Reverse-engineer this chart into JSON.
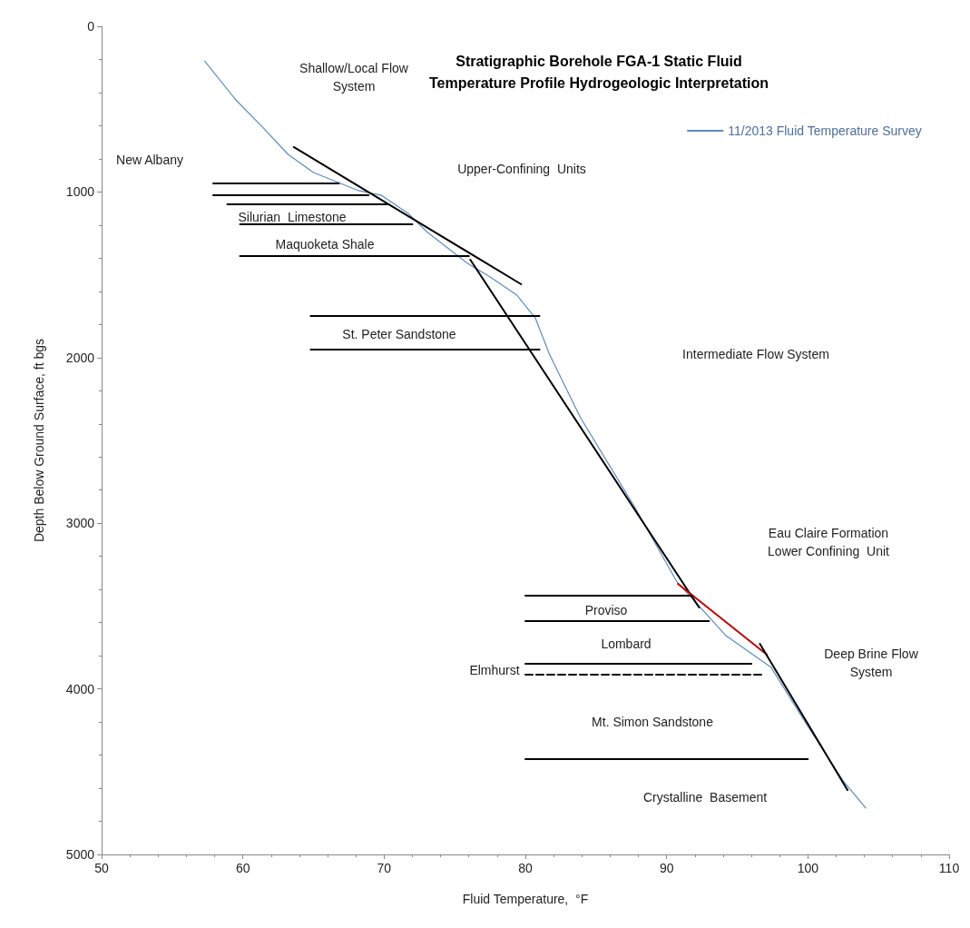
{
  "chart_data": {
    "type": "line",
    "title": "Stratigraphic Borehole FGA-1 Static Fluid\nTemperature Profile Hydrogeologic Interpretation",
    "xlabel": "Fluid Temperature,  °F",
    "ylabel": "Depth Below Ground Surface, ft bgs",
    "xlim": [
      50,
      110
    ],
    "xticks": [
      50,
      60,
      70,
      80,
      90,
      100,
      110
    ],
    "ylim": [
      5000,
      0
    ],
    "yticks": [
      0,
      1000,
      2000,
      3000,
      4000,
      5000
    ],
    "grid": false,
    "legend": "top right",
    "marker": "none",
    "line_style": "solid",
    "series": [
      {
        "name": "11/2013 Fluid Temperature Survey",
        "color": "#5b8bc0",
        "x": [
          57.3,
          59.5,
          61.4,
          63.2,
          65.0,
          68.2,
          69.8,
          71.7,
          73.0,
          75.9,
          77.5,
          79.4,
          80.7,
          81.7,
          83.9,
          87.8,
          90.7,
          94.2,
          97.4,
          100.0,
          102.5,
          104.1
        ],
        "values": [
          210,
          444,
          609,
          773,
          883,
          992,
          1020,
          1129,
          1239,
          1431,
          1513,
          1623,
          1760,
          1979,
          2363,
          2911,
          3350,
          3679,
          3871,
          4227,
          4556,
          4720
        ]
      },
      {
        "color": "#000000",
        "x": [
          63.6,
          79.7
        ],
        "values": [
          729,
          1557
        ]
      },
      {
        "color": "#000000",
        "x": [
          76.1,
          92.3
        ],
        "values": [
          1409,
          3509
        ]
      },
      {
        "color": "#c00000",
        "x": [
          90.8,
          97.1
        ],
        "values": [
          3366,
          3794
        ]
      },
      {
        "color": "#000000",
        "x": [
          96.6,
          102.8
        ],
        "values": [
          3728,
          4611
        ]
      },
      {
        "color": "#000000",
        "x": [
          57.9,
          66.8
        ],
        "values": [
          948,
          948
        ]
      },
      {
        "color": "#000000",
        "x": [
          57.9,
          68.9
        ],
        "values": [
          1020,
          1020
        ]
      },
      {
        "color": "#000000",
        "x": [
          58.9,
          70.2
        ],
        "values": [
          1075,
          1075
        ]
      },
      {
        "color": "#000000",
        "x": [
          59.8,
          72.0
        ],
        "values": [
          1195,
          1195
        ]
      },
      {
        "color": "#000000",
        "x": [
          59.8,
          76.0
        ],
        "values": [
          1387,
          1387
        ]
      },
      {
        "color": "#000000",
        "x": [
          64.8,
          81.0
        ],
        "values": [
          1749,
          1749
        ]
      },
      {
        "color": "#000000",
        "x": [
          64.8,
          81.0
        ],
        "values": [
          1952,
          1952
        ]
      },
      {
        "color": "#000000",
        "x": [
          80.0,
          91.8
        ],
        "values": [
          3437,
          3437
        ]
      },
      {
        "color": "#000000",
        "x": [
          80.0,
          93.0
        ],
        "values": [
          3591,
          3591
        ]
      },
      {
        "color": "#000000",
        "x": [
          80.0,
          96.0
        ],
        "values": [
          3849,
          3849
        ]
      },
      {
        "color": "#000000",
        "x": [
          80.0,
          96.8
        ],
        "values": [
          3914,
          3914
        ],
        "line_style": "dashed"
      },
      {
        "color": "#000000",
        "x": [
          80.0,
          100.0
        ],
        "values": [
          4424,
          4424
        ]
      }
    ],
    "annotations": [
      "Shallow/Local Flow\nSystem",
      "New Albany",
      "Upper-Confining  Units",
      "Silurian  Limestone",
      "Maquoketa Shale",
      "St. Peter Sandstone",
      "Intermediate Flow System",
      "Eau Claire Formation\nLower Confining  Unit",
      "Proviso",
      "Lombard",
      "Elmhurst",
      "Deep Brine Flow\nSystem",
      "Mt. Simon Sandstone",
      "Crystalline  Basement"
    ]
  }
}
